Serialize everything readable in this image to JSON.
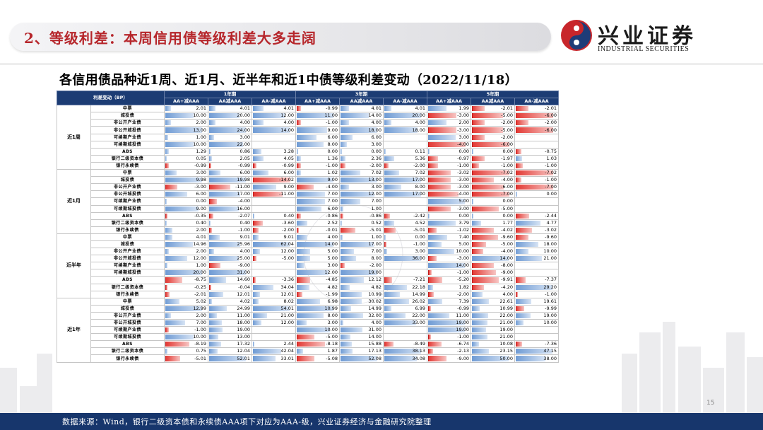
{
  "header": {
    "title": "2、等级利差：本周信用债等级利差大多走阔",
    "logo_cn": "兴业证券",
    "logo_en": "INDUSTRIAL SECURITIES"
  },
  "subtitle": "各信用债品种近1周、近1月、近半年和近1中债等级利差变动（2022/11/18）",
  "table": {
    "corner_label": "利差变动（BP）",
    "groups": [
      "1年期",
      "3年期",
      "5年期"
    ],
    "subheaders": [
      "AA+减AAA",
      "AA减AAA",
      "AA-减AAA",
      "AA+减AAA",
      "AA减AAA",
      "AA-减AAA",
      "AA+减AAA",
      "AA减AAA",
      "AA-减AAA"
    ],
    "sections": [
      {
        "name": "近1周",
        "rows": [
          {
            "label": "中票",
            "values": [
              "2.01",
              "4.01",
              "4.01",
              "-0.99",
              "4.01",
              "4.01",
              "1.99",
              "-2.01",
              "-2.01"
            ]
          },
          {
            "label": "城投债",
            "values": [
              "10.00",
              "20.00",
              "12.00",
              "11.00",
              "14.00",
              "20.00",
              "-3.00",
              "-5.00",
              "-6.00"
            ]
          },
          {
            "label": "非公开产业债",
            "values": [
              "2.00",
              "4.00",
              "4.00",
              "-1.00",
              "4.00",
              "4.00",
              "2.00",
              "-2.00",
              "-2.00"
            ]
          },
          {
            "label": "非公开城投债",
            "values": [
              "13.00",
              "24.00",
              "14.00",
              "9.00",
              "18.00",
              "18.00",
              "-3.00",
              "-5.00",
              "-6.00"
            ]
          },
          {
            "label": "可续期产业债",
            "values": [
              "1.00",
              "3.00",
              "",
              "6.00",
              "6.00",
              "",
              "3.00",
              "-2.00",
              ""
            ]
          },
          {
            "label": "可续期城投债",
            "values": [
              "10.00",
              "22.00",
              "",
              "8.00",
              "3.00",
              "",
              "-4.00",
              "-6.00",
              ""
            ]
          },
          {
            "label": "ABS",
            "values": [
              "1.29",
              "0.86",
              "3.28",
              "0.00",
              "0.00",
              "0.11",
              "0.00",
              "0.00",
              "-0.75"
            ]
          },
          {
            "label": "银行二级资本债",
            "values": [
              "0.05",
              "2.05",
              "4.05",
              "1.36",
              "2.36",
              "5.36",
              "-0.97",
              "-1.97",
              "1.03"
            ]
          },
          {
            "label": "银行永续债",
            "values": [
              "-0.99",
              "-0.99",
              "-0.99",
              "-1.00",
              "-2.00",
              "-2.00",
              "-1.00",
              "-1.00",
              "-1.00"
            ]
          }
        ]
      },
      {
        "name": "近1月",
        "rows": [
          {
            "label": "中票",
            "values": [
              "3.00",
              "6.00",
              "6.00",
              "1.02",
              "7.02",
              "7.02",
              "-3.02",
              "-7.02",
              "-7.02"
            ]
          },
          {
            "label": "城投债",
            "values": [
              "9.98",
              "19.98",
              "-14.02",
              "9.00",
              "13.00",
              "17.00",
              "-3.00",
              "-4.00",
              "-1.00"
            ]
          },
          {
            "label": "非公开产业债",
            "values": [
              "-3.00",
              "-11.00",
              "9.00",
              "-4.00",
              "3.00",
              "8.00",
              "-3.00",
              "-6.00",
              "-7.00"
            ]
          },
          {
            "label": "非公开城投债",
            "values": [
              "6.00",
              "17.00",
              "-11.00",
              "7.00",
              "12.00",
              "17.00",
              "-4.00",
              "-7.00",
              "0.00"
            ]
          },
          {
            "label": "可续期产业债",
            "values": [
              "0.00",
              "-4.00",
              "",
              "7.00",
              "7.00",
              "",
              "5.00",
              "0.00",
              ""
            ]
          },
          {
            "label": "可续期城投债",
            "values": [
              "9.00",
              "16.00",
              "",
              "6.00",
              "1.00",
              "",
              "-3.00",
              "-5.00",
              ""
            ]
          },
          {
            "label": "ABS",
            "values": [
              "-0.35",
              "-2.07",
              "0.40",
              "-0.86",
              "-0.86",
              "-2.42",
              "0.00",
              "0.00",
              "-2.44"
            ]
          },
          {
            "label": "银行二级资本债",
            "values": [
              "0.40",
              "0.40",
              "-3.60",
              "2.52",
              "0.52",
              "4.52",
              "3.79",
              "1.77",
              "4.77"
            ]
          },
          {
            "label": "银行永续债",
            "values": [
              "2.00",
              "-1.00",
              "-2.00",
              "-0.01",
              "-5.01",
              "-5.01",
              "-1.02",
              "-4.02",
              "-3.02"
            ]
          }
        ]
      },
      {
        "name": "近半年",
        "rows": [
          {
            "label": "中票",
            "values": [
              "4.01",
              "9.01",
              "9.01",
              "4.00",
              "1.00",
              "0.00",
              "7.40",
              "-9.60",
              "-9.60"
            ]
          },
          {
            "label": "城投债",
            "values": [
              "14.96",
              "25.96",
              "62.04",
              "14.00",
              "17.00",
              "-1.00",
              "5.00",
              "-5.00",
              "18.00"
            ]
          },
          {
            "label": "非公开产业债",
            "values": [
              "2.00",
              "4.00",
              "12.00",
              "5.00",
              "7.00",
              "3.00",
              "10.00",
              "-4.00",
              "10.00"
            ]
          },
          {
            "label": "非公开城投债",
            "values": [
              "12.00",
              "25.00",
              "-5.00",
              "5.00",
              "8.00",
              "36.00",
              "-3.00",
              "14.00",
              "21.00"
            ]
          },
          {
            "label": "可续期产业债",
            "values": [
              "1.00",
              "-9.00",
              "",
              "3.00",
              "-2.00",
              "",
              "14.00",
              "-8.00",
              ""
            ]
          },
          {
            "label": "可续期城投债",
            "values": [
              "20.00",
              "31.00",
              "",
              "12.00",
              "19.00",
              "",
              "-1.00",
              "-9.00",
              ""
            ]
          },
          {
            "label": "ABS",
            "values": [
              "-8.75",
              "14.60",
              "-3.36",
              "-4.85",
              "12.12",
              "-7.21",
              "-5.20",
              "-9.91",
              "-7.37"
            ]
          },
          {
            "label": "银行二级资本债",
            "values": [
              "-0.25",
              "-0.04",
              "34.04",
              "4.82",
              "4.82",
              "22.18",
              "1.82",
              "-4.20",
              "29.20"
            ]
          },
          {
            "label": "银行永续债",
            "values": [
              "-2.01",
              "12.01",
              "12.01",
              "-1.99",
              "10.99",
              "14.99",
              "-2.00",
              "4.00",
              "-1.00"
            ]
          }
        ]
      },
      {
        "name": "近1年",
        "rows": [
          {
            "label": "中票",
            "values": [
              "5.02",
              "4.02",
              "8.02",
              "6.98",
              "30.02",
              "26.02",
              "7.39",
              "22.61",
              "19.61"
            ]
          },
          {
            "label": "城投债",
            "values": [
              "12.99",
              "24.99",
              "54.01",
              "10.99",
              "14.99",
              "6.99",
              "-0.99",
              "10.99",
              "-9.99"
            ]
          },
          {
            "label": "非公开产业债",
            "values": [
              "2.00",
              "11.00",
              "21.00",
              "8.00",
              "32.00",
              "22.00",
              "11.00",
              "22.00",
              "19.00"
            ]
          },
          {
            "label": "非公开城投债",
            "values": [
              "7.00",
              "18.00",
              "12.00",
              "3.00",
              "4.00",
              "33.00",
              "19.00",
              "21.00",
              "10.00"
            ]
          },
          {
            "label": "可续期产业债",
            "values": [
              "-1.00",
              "19.00",
              "",
              "10.00",
              "31.00",
              "",
              "19.00",
              "19.00",
              ""
            ]
          },
          {
            "label": "可续期城投债",
            "values": [
              "10.00",
              "13.00",
              "",
              "-5.00",
              "14.00",
              "",
              "-1.00",
              "21.00",
              ""
            ]
          },
          {
            "label": "ABS",
            "values": [
              "-8.19",
              "17.32",
              "2.44",
              "-8.18",
              "15.88",
              "-8.49",
              "-6.74",
              "10.08",
              "-7.36"
            ]
          },
          {
            "label": "银行二级资本债",
            "values": [
              "0.75",
              "12.04",
              "42.04",
              "1.87",
              "17.13",
              "38.13",
              "-2.13",
              "23.15",
              "47.15"
            ]
          },
          {
            "label": "银行永续债",
            "values": [
              "-5.01",
              "52.01",
              "33.01",
              "-5.08",
              "52.08",
              "34.08",
              "-9.00",
              "50.00",
              "38.00"
            ]
          }
        ]
      }
    ]
  },
  "colors": {
    "header_bg": "#1c3c74",
    "title_red": "#b6262b",
    "bar_blue": "#6f9bd4",
    "bar_red": "#e33a35",
    "footer_bg": "#17366c"
  },
  "footer": "数据来源：Wind，银行二级资本债和永续债AAA项下对应为AAA-级，兴业证券经济与金融研究院整理",
  "page_number": "15"
}
